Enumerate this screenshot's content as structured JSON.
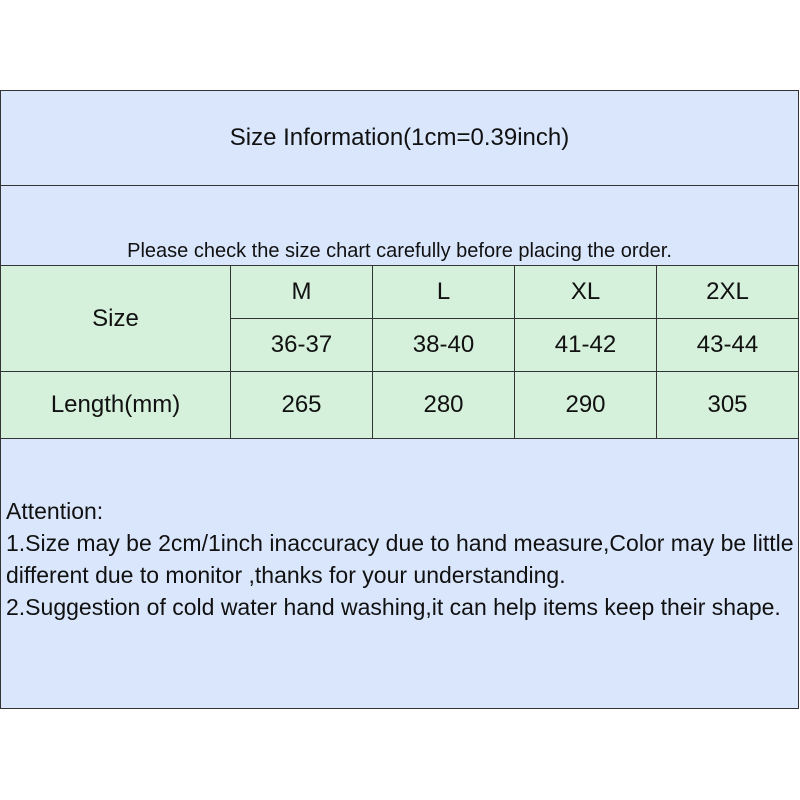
{
  "title": "Size Information(1cm=0.39inch)",
  "notice": "Please check the size chart carefully before placing the order.",
  "table": {
    "size_label": "Size",
    "sizes": [
      "M",
      "L",
      "XL",
      "2XL"
    ],
    "eu": [
      "36-37",
      "38-40",
      "41-42",
      "43-44"
    ],
    "length_label": "Length(mm)",
    "lengths": [
      "265",
      "280",
      "290",
      "305"
    ]
  },
  "attention": {
    "heading": "Attention:",
    "lines": [
      "1.Size may be 2cm/1inch inaccuracy due to hand measure,Color may be little different due to monitor ,thanks for your understanding.",
      "2.Suggestion of cold water hand washing,it can help items keep their shape."
    ]
  },
  "colors": {
    "header_bg": "#d9e6fb",
    "table_bg": "#d5f0db"
  }
}
